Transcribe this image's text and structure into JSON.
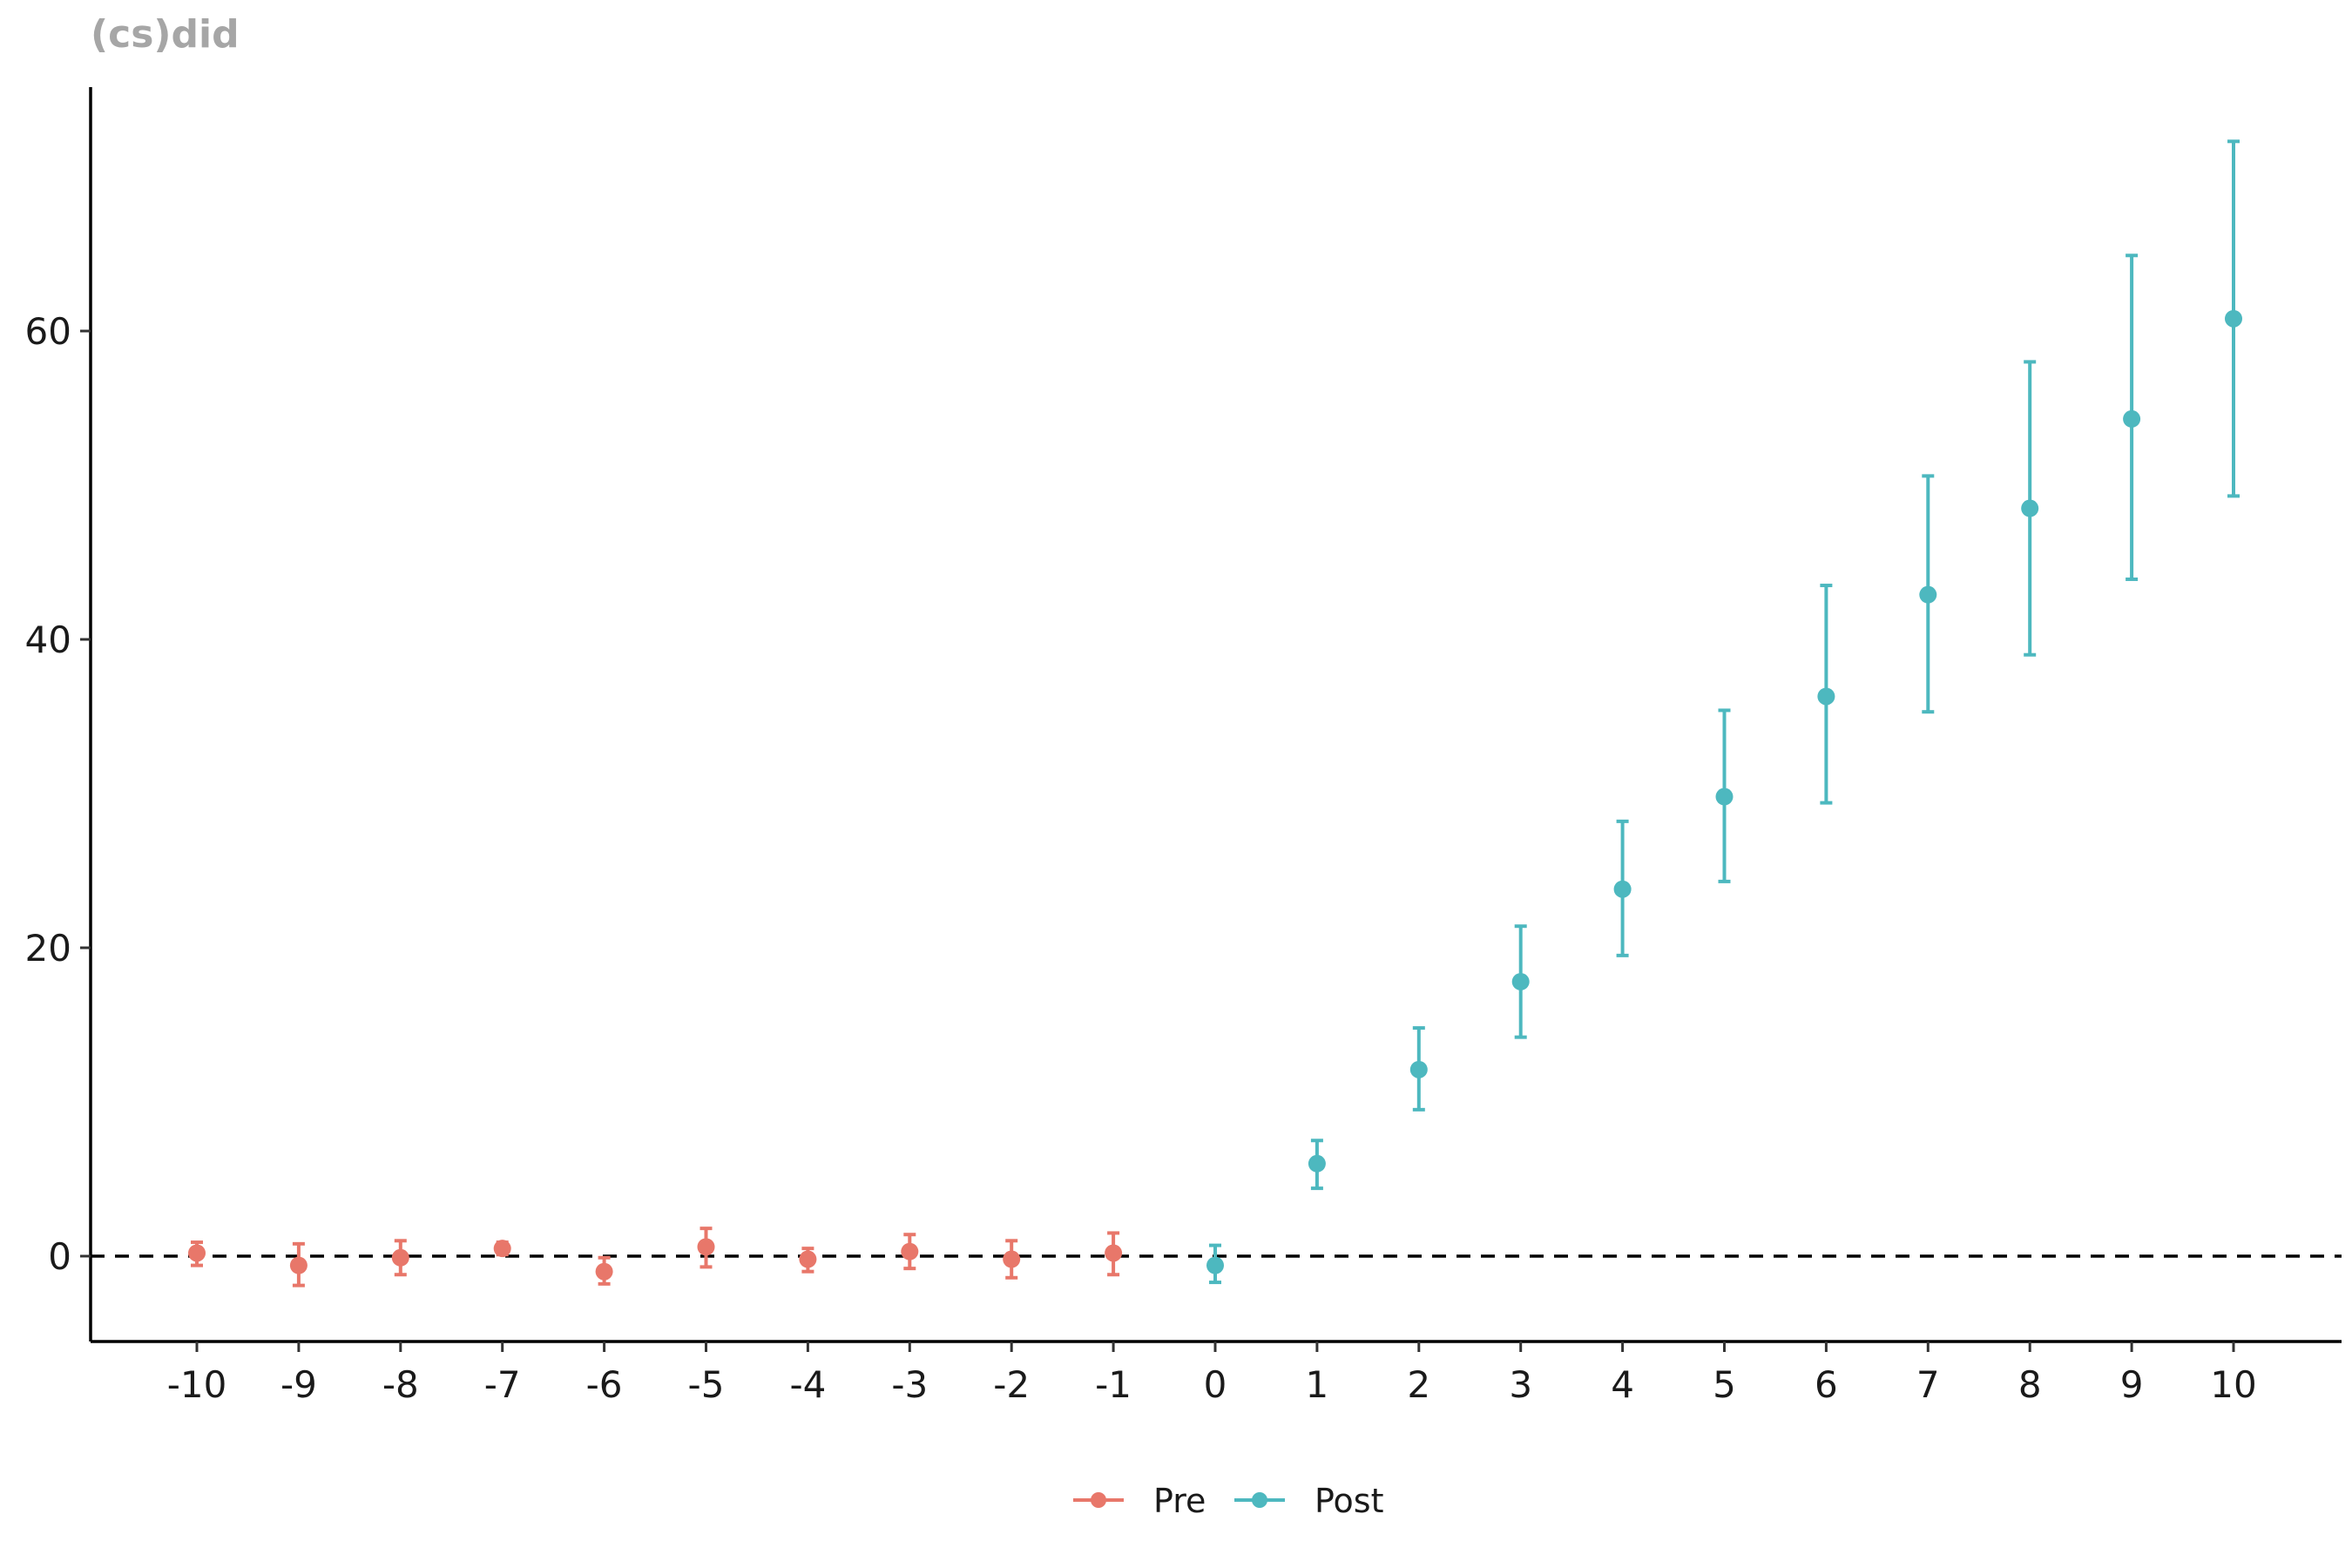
{
  "chart_data": {
    "type": "scatter",
    "title": "(cs)did",
    "xlabel": "",
    "ylabel": "",
    "x_ticks": [
      "-10",
      "-9",
      "-8",
      "-7",
      "-6",
      "-5",
      "-4",
      "-3",
      "-2",
      "-1",
      "0",
      "1",
      "2",
      "3",
      "4",
      "5",
      "6",
      "7",
      "8",
      "9",
      "10"
    ],
    "y_ticks": [
      "0",
      "20",
      "40",
      "60"
    ],
    "ylim": [
      -5.5,
      76
    ],
    "xlim": [
      -11,
      11
    ],
    "grid": false,
    "legend_position": "bottom",
    "reference_line": {
      "y": 0,
      "style": "dashed"
    },
    "error_bars": true,
    "series": [
      {
        "name": "Pre",
        "color": "#E8776A",
        "points": [
          {
            "x": -10,
            "y": 0.2,
            "lo": -0.6,
            "hi": 0.9
          },
          {
            "x": -9,
            "y": -0.6,
            "lo": -1.9,
            "hi": 0.8
          },
          {
            "x": -8,
            "y": -0.1,
            "lo": -1.2,
            "hi": 1.0
          },
          {
            "x": -7,
            "y": 0.5,
            "lo": 0.1,
            "hi": 0.9
          },
          {
            "x": -6,
            "y": -1.0,
            "lo": -1.8,
            "hi": -0.1
          },
          {
            "x": -5,
            "y": 0.6,
            "lo": -0.7,
            "hi": 1.8
          },
          {
            "x": -4,
            "y": -0.2,
            "lo": -1.0,
            "hi": 0.5
          },
          {
            "x": -3,
            "y": 0.3,
            "lo": -0.8,
            "hi": 1.4
          },
          {
            "x": -2,
            "y": -0.2,
            "lo": -1.4,
            "hi": 1.0
          },
          {
            "x": -1,
            "y": 0.2,
            "lo": -1.2,
            "hi": 1.5
          }
        ]
      },
      {
        "name": "Post",
        "color": "#4DB8BF",
        "points": [
          {
            "x": 0,
            "y": -0.6,
            "lo": -1.7,
            "hi": 0.7
          },
          {
            "x": 1,
            "y": 6.0,
            "lo": 4.4,
            "hi": 7.5
          },
          {
            "x": 2,
            "y": 12.1,
            "lo": 9.5,
            "hi": 14.8
          },
          {
            "x": 3,
            "y": 17.8,
            "lo": 14.2,
            "hi": 21.4
          },
          {
            "x": 4,
            "y": 23.8,
            "lo": 19.5,
            "hi": 28.2
          },
          {
            "x": 5,
            "y": 29.8,
            "lo": 24.3,
            "hi": 35.4
          },
          {
            "x": 6,
            "y": 36.3,
            "lo": 29.4,
            "hi": 43.5
          },
          {
            "x": 7,
            "y": 42.9,
            "lo": 35.3,
            "hi": 50.6
          },
          {
            "x": 8,
            "y": 48.5,
            "lo": 39.0,
            "hi": 58.0
          },
          {
            "x": 9,
            "y": 54.3,
            "lo": 43.9,
            "hi": 64.9
          },
          {
            "x": 10,
            "y": 60.8,
            "lo": 49.3,
            "hi": 72.3
          }
        ]
      }
    ]
  }
}
